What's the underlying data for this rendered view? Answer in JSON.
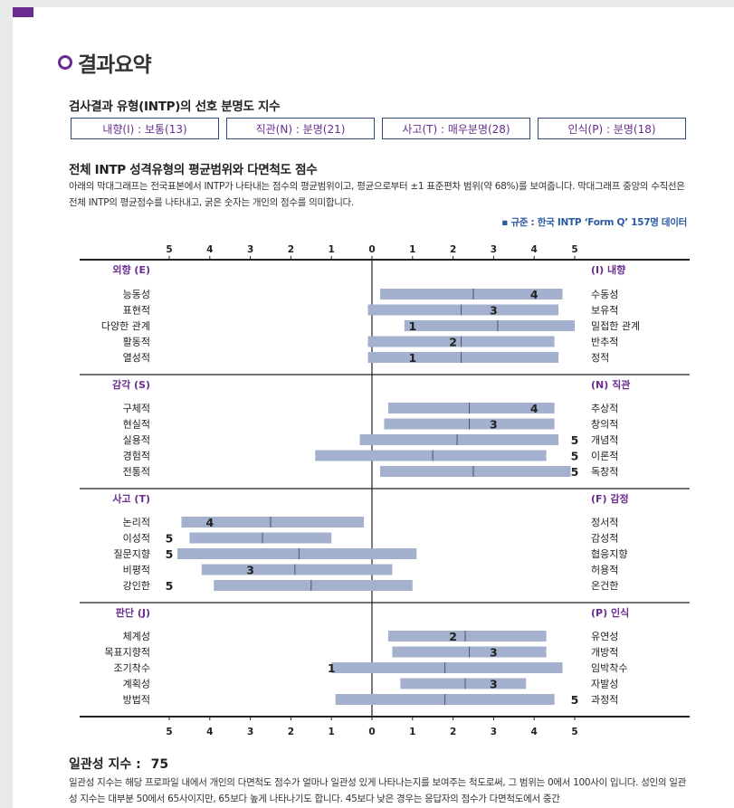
{
  "heading": "결과요약",
  "preference": {
    "title": "검사결과 유형(INTP)의 선호 분명도 지수",
    "boxes": [
      "내향(I) : 보통(13)",
      "직관(N) : 분명(21)",
      "사고(T) : 매우분명(28)",
      "인식(P) : 분명(18)"
    ]
  },
  "facets": {
    "title": "전체 INTP 성격유형의 평균범위와 다면척도 점수",
    "description": "아래의 막대그래프는 전국표본에서 INTP가 나타내는 점수의 평균범위이고, 평균으로부터 ±1 표준편차 범위(약 68%)를 보여줍니다. 막대그래프 중앙의 수직선은 전체 INTP의 평균점수를 나타내고, 굵은 숫자는 개인의 점수를 의미합니다.",
    "norm": "▪ 규준 : 한국 INTP ‘Form Q’ 157명 데이터"
  },
  "chart_data": {
    "type": "bar",
    "axis_ticks": [
      "5",
      "4",
      "3",
      "2",
      "1",
      "0",
      "1",
      "2",
      "3",
      "4",
      "5"
    ],
    "xlim": [
      -5,
      5
    ],
    "sections": [
      {
        "left_pole": "외향 (E)",
        "right_pole": "(I) 내향",
        "rows": [
          {
            "left": "능동성",
            "right": "수동성",
            "range": [
              0.2,
              4.7
            ],
            "mean": 2.5,
            "score": 4,
            "score_text": "4"
          },
          {
            "left": "표현적",
            "right": "보유적",
            "range": [
              -0.1,
              4.6
            ],
            "mean": 2.2,
            "score": 3,
            "score_text": "3"
          },
          {
            "left": "다양한 관계",
            "right": "밀접한 관계",
            "range": [
              0.8,
              5.0
            ],
            "mean": 3.1,
            "score": 1,
            "score_text": "1"
          },
          {
            "left": "활동적",
            "right": "반추적",
            "range": [
              -0.1,
              4.5
            ],
            "mean": 2.2,
            "score": 2,
            "score_text": "2"
          },
          {
            "left": "열성적",
            "right": "정적",
            "range": [
              -0.1,
              4.6
            ],
            "mean": 2.2,
            "score": 1,
            "score_text": "1"
          }
        ]
      },
      {
        "left_pole": "감각 (S)",
        "right_pole": "(N) 직관",
        "rows": [
          {
            "left": "구체적",
            "right": "추상적",
            "range": [
              0.4,
              4.5
            ],
            "mean": 2.4,
            "score": 4,
            "score_text": "4"
          },
          {
            "left": "현실적",
            "right": "창의적",
            "range": [
              0.3,
              4.5
            ],
            "mean": 2.4,
            "score": 3,
            "score_text": "3"
          },
          {
            "left": "실용적",
            "right": "개념적",
            "range": [
              -0.3,
              4.6
            ],
            "mean": 2.1,
            "score": 5,
            "score_text": "5"
          },
          {
            "left": "경험적",
            "right": "이론적",
            "range": [
              -1.4,
              4.3
            ],
            "mean": 1.5,
            "score": 5,
            "score_text": "5"
          },
          {
            "left": "전통적",
            "right": "독창적",
            "range": [
              0.2,
              4.9
            ],
            "mean": 2.5,
            "score": 5,
            "score_text": "5"
          }
        ]
      },
      {
        "left_pole": "사고 (T)",
        "right_pole": "(F) 감정",
        "rows": [
          {
            "left": "논리적",
            "right": "정서적",
            "range": [
              -4.7,
              -0.2
            ],
            "mean": -2.5,
            "score": -4,
            "score_text": "4"
          },
          {
            "left": "이성적",
            "right": "감성적",
            "range": [
              -4.5,
              -1.0
            ],
            "mean": -2.7,
            "score": -5,
            "score_text": "5"
          },
          {
            "left": "질문지향",
            "right": "협응지향",
            "range": [
              -4.8,
              1.1
            ],
            "mean": -1.8,
            "score": -5,
            "score_text": "5"
          },
          {
            "left": "비평적",
            "right": "허용적",
            "range": [
              -4.2,
              0.5
            ],
            "mean": -1.9,
            "score": -3,
            "score_text": "3"
          },
          {
            "left": "강인한",
            "right": "온건한",
            "range": [
              -3.9,
              1.0
            ],
            "mean": -1.5,
            "score": -5,
            "score_text": "5"
          }
        ]
      },
      {
        "left_pole": "판단 (J)",
        "right_pole": "(P) 인식",
        "rows": [
          {
            "left": "체계성",
            "right": "유연성",
            "range": [
              0.4,
              4.3
            ],
            "mean": 2.3,
            "score": 2,
            "score_text": "2"
          },
          {
            "left": "목표지향적",
            "right": "개방적",
            "range": [
              0.5,
              4.3
            ],
            "mean": 2.4,
            "score": 3,
            "score_text": "3"
          },
          {
            "left": "조기착수",
            "right": "임박착수",
            "range": [
              -1.0,
              4.7
            ],
            "mean": 1.8,
            "score": -1,
            "score_text": "1"
          },
          {
            "left": "계획성",
            "right": "자발성",
            "range": [
              0.7,
              3.8
            ],
            "mean": 2.3,
            "score": 3,
            "score_text": "3"
          },
          {
            "left": "방법적",
            "right": "과정적",
            "range": [
              -0.9,
              4.5
            ],
            "mean": 1.8,
            "score": 5,
            "score_text": "5"
          }
        ]
      }
    ]
  },
  "consistency": {
    "label": "일관성 지수 :",
    "value": "75",
    "text": "일관성 지수는 해당 프로파일 내에서 개인의 다면척도 점수가 얼마나 일관성 있게 나타나는지를 보여주는 척도로써, 그 범위는 0에서 100사이 입니다. 성인의 일관성 지수는 대부분 50에서 65사이지만, 65보다 높게 나타나기도 합니다. 45보다 낮은 경우는 응답자의 점수가 다면척도에서 중간"
  },
  "colors": {
    "accent": "#6a2c91",
    "bar": "#a3b1ce",
    "box_border": "#2b4a7a",
    "norm": "#2b5aa0"
  }
}
